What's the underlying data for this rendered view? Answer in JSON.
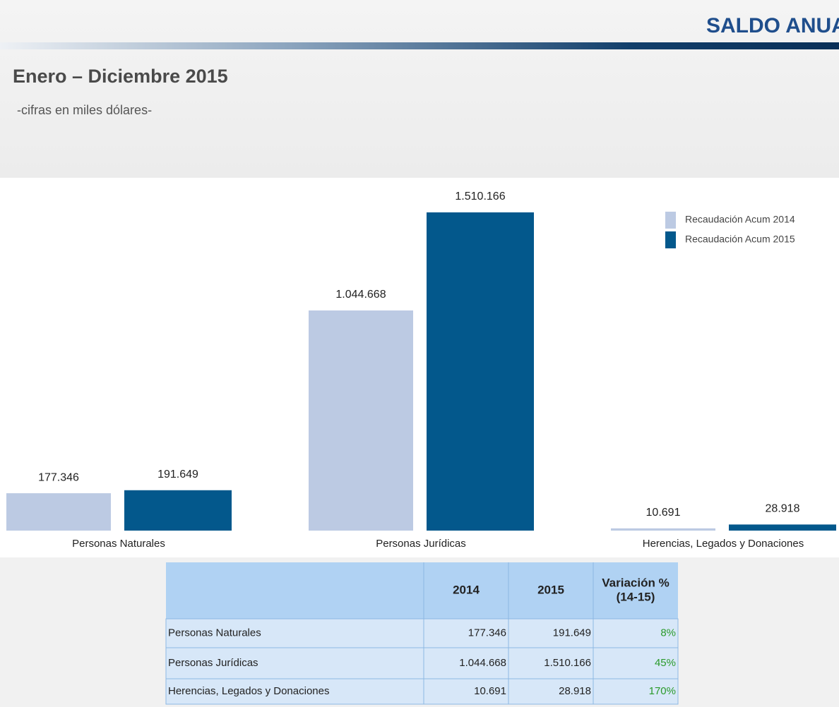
{
  "chart_data": {
    "type": "bar",
    "header": "SALDO ANUAL",
    "title": "Enero – Diciembre 2015",
    "subtitle": "-cifras en miles dólares-",
    "categories": [
      "Personas Naturales",
      "Personas Jurídicas",
      "Herencias, Legados y Donaciones"
    ],
    "series": [
      {
        "name": "Recaudación Acum 2014",
        "color": "#bccae3",
        "values": [
          177346,
          1044668,
          10691
        ],
        "value_labels": [
          "177.346",
          "1.044.668",
          "10.691"
        ]
      },
      {
        "name": "Recaudación Acum 2015",
        "color": "#03588c",
        "values": [
          191649,
          1510166,
          28918
        ],
        "value_labels": [
          "191.649",
          "1.510.166",
          "28.918"
        ]
      }
    ],
    "legend": "top-right"
  },
  "table": {
    "columns": [
      [
        "2014"
      ],
      [
        "2015"
      ],
      [
        "Variación %",
        "(14-15)"
      ]
    ],
    "rows": [
      [
        "Personas Naturales",
        "177.346",
        "191.649",
        "8%"
      ],
      [
        "Personas Jurídicas",
        "1.044.668",
        "1.510.166",
        "45%"
      ],
      [
        "Herencias, Legados y Donaciones",
        "10.691",
        "28.918",
        "170%"
      ]
    ]
  }
}
